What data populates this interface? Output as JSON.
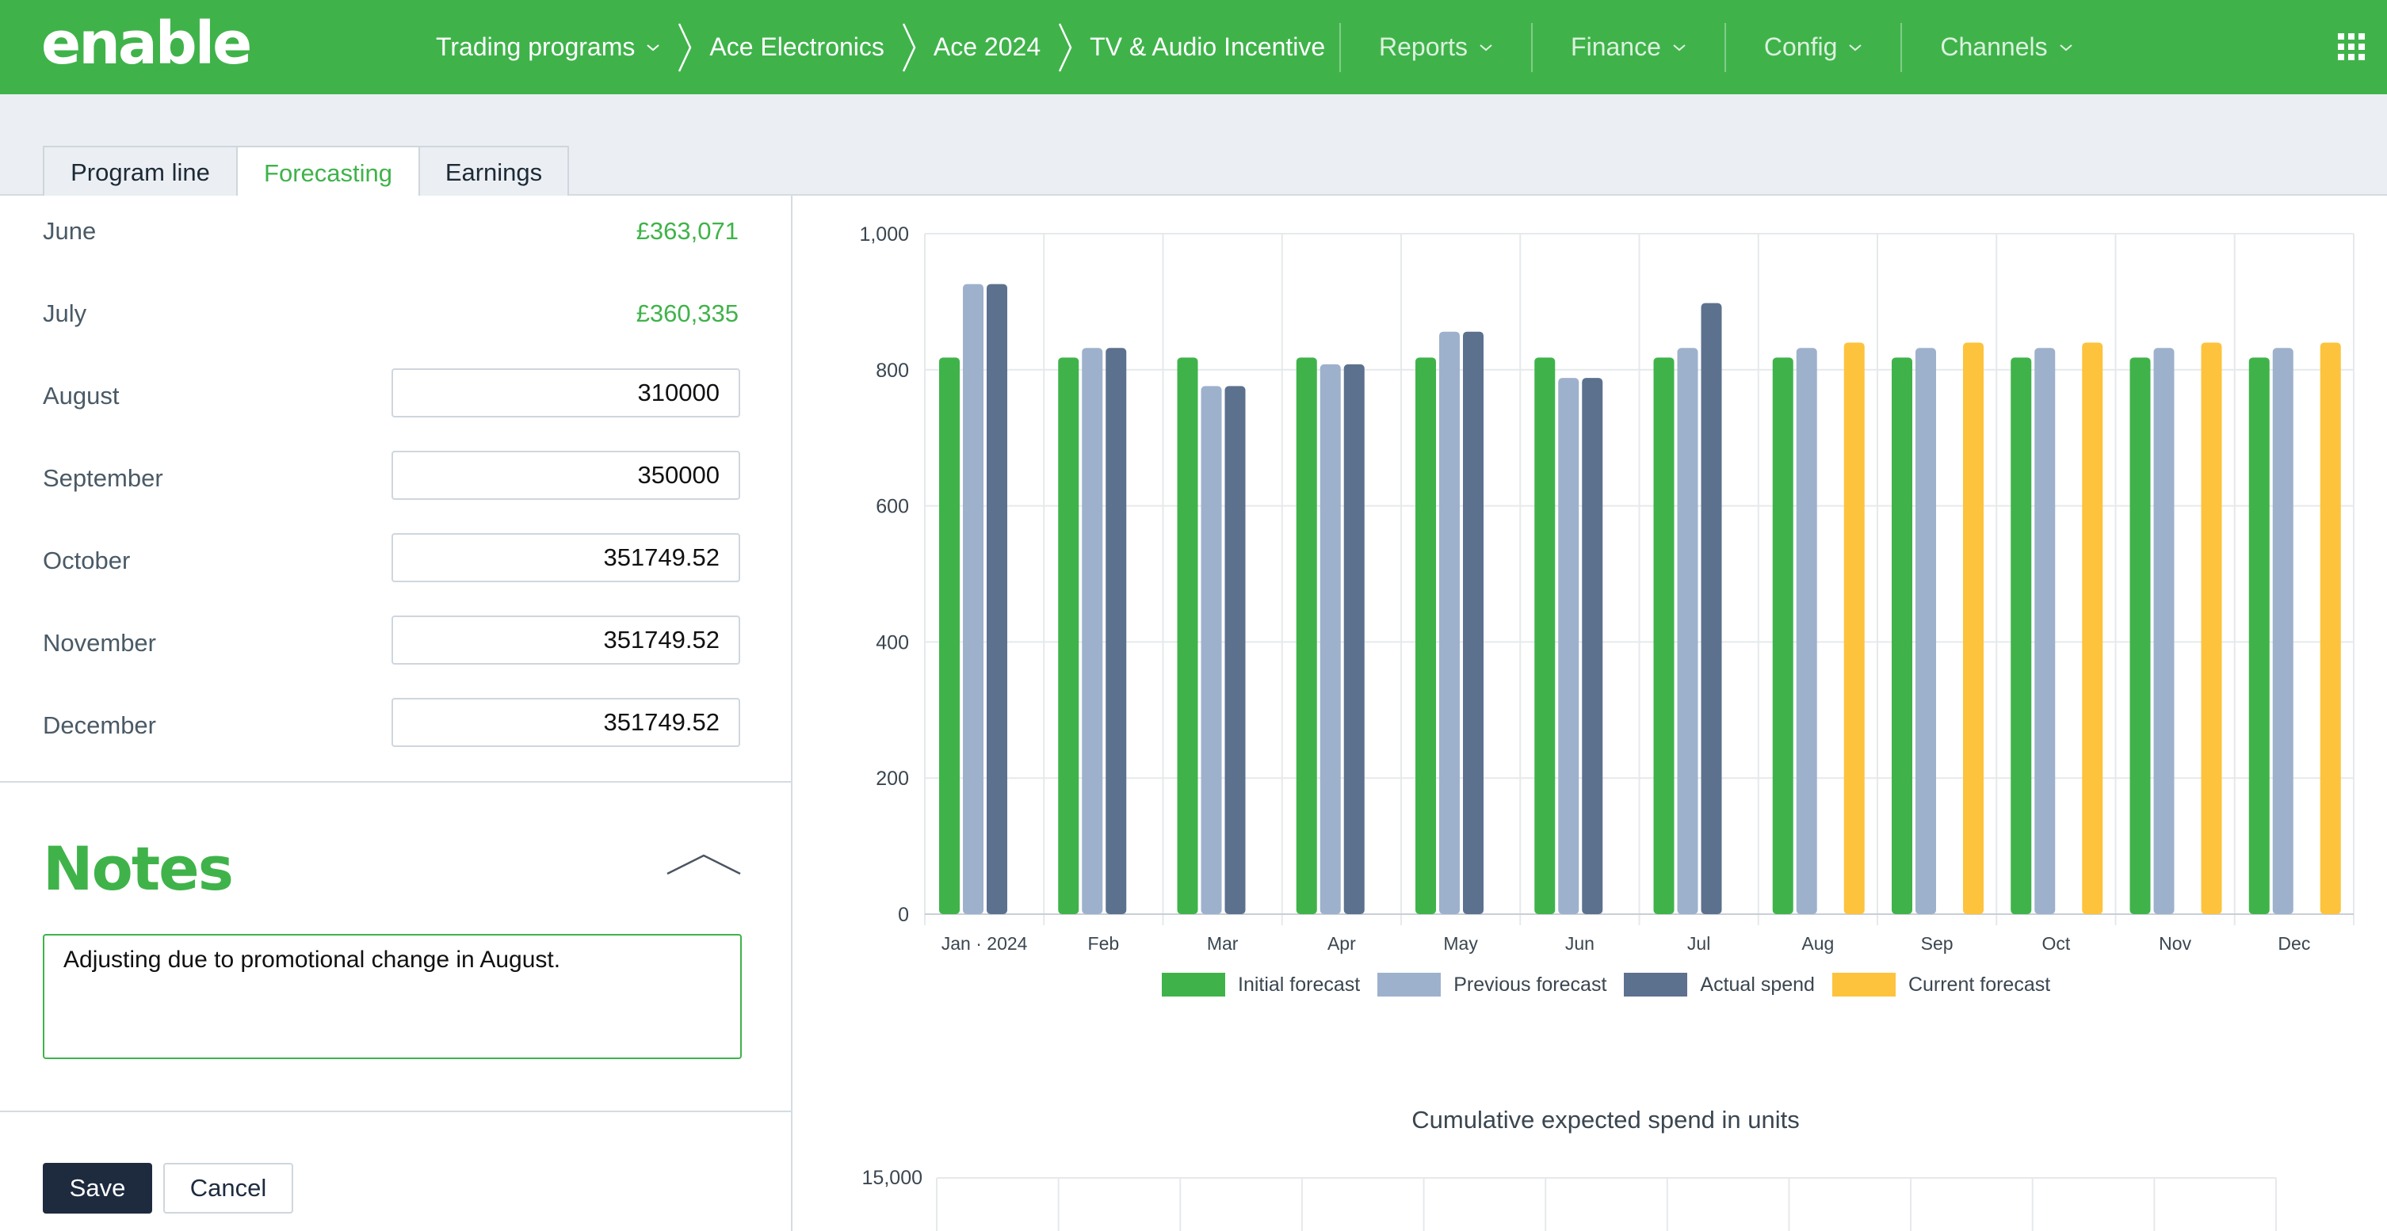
{
  "app": {
    "logo_text": "enable",
    "breadcrumbs": [
      {
        "label": "Trading programs",
        "has_dropdown": true
      },
      {
        "label": "Ace Electronics",
        "has_dropdown": false
      },
      {
        "label": "Ace 2024",
        "has_dropdown": false
      },
      {
        "label": "TV & Audio Incentive",
        "has_dropdown": false
      }
    ],
    "menus": [
      "Reports",
      "Finance",
      "Config",
      "Channels"
    ],
    "apps_icon": "grid-icon"
  },
  "tabs": [
    {
      "label": "Program line",
      "active": false
    },
    {
      "label": "Forecasting",
      "active": true
    },
    {
      "label": "Earnings",
      "active": false
    }
  ],
  "forecast": {
    "readonly_months": [
      {
        "month": "June",
        "value": "£363,071"
      },
      {
        "month": "July",
        "value": "£360,335"
      }
    ],
    "editable_months": [
      {
        "month": "August",
        "value": "310000"
      },
      {
        "month": "September",
        "value": "350000"
      },
      {
        "month": "October",
        "value": "351749.52"
      },
      {
        "month": "November",
        "value": "351749.52"
      },
      {
        "month": "December",
        "value": "351749.52"
      }
    ]
  },
  "notes": {
    "title": "Notes",
    "text": "Adjusting due to promotional change in August."
  },
  "actions": {
    "save": "Save",
    "cancel": "Cancel"
  },
  "chart_data": [
    {
      "type": "bar",
      "categories": [
        "Jan · 2024",
        "Feb",
        "Mar",
        "Apr",
        "May",
        "Jun",
        "Jul",
        "Aug",
        "Sep",
        "Oct",
        "Nov",
        "Dec"
      ],
      "y_ticks": [
        "0",
        "200",
        "400",
        "600",
        "800",
        "1,000"
      ],
      "ylim": [
        0,
        1000
      ],
      "grid": true,
      "legend_position": "bottom",
      "series": [
        {
          "name": "Initial forecast",
          "color": "#3fb34a",
          "values": [
            818,
            818,
            818,
            818,
            818,
            818,
            818,
            818,
            818,
            818,
            818,
            818
          ]
        },
        {
          "name": "Previous forecast",
          "color": "#9db1cc",
          "values": [
            926,
            832,
            776,
            808,
            856,
            788,
            832,
            832,
            832,
            832,
            832,
            832
          ]
        },
        {
          "name": "Actual spend",
          "color": "#5c718d",
          "values": [
            926,
            832,
            776,
            808,
            856,
            788,
            898,
            null,
            null,
            null,
            null,
            null
          ]
        },
        {
          "name": "Current forecast",
          "color": "#fdc33d",
          "values": [
            null,
            null,
            null,
            null,
            null,
            null,
            null,
            840,
            840,
            840,
            840,
            840
          ]
        }
      ]
    },
    {
      "type": "line",
      "title": "Cumulative expected spend in units",
      "y_ticks": [
        "15,000"
      ],
      "ylim_max": 15000,
      "grid": true
    }
  ]
}
